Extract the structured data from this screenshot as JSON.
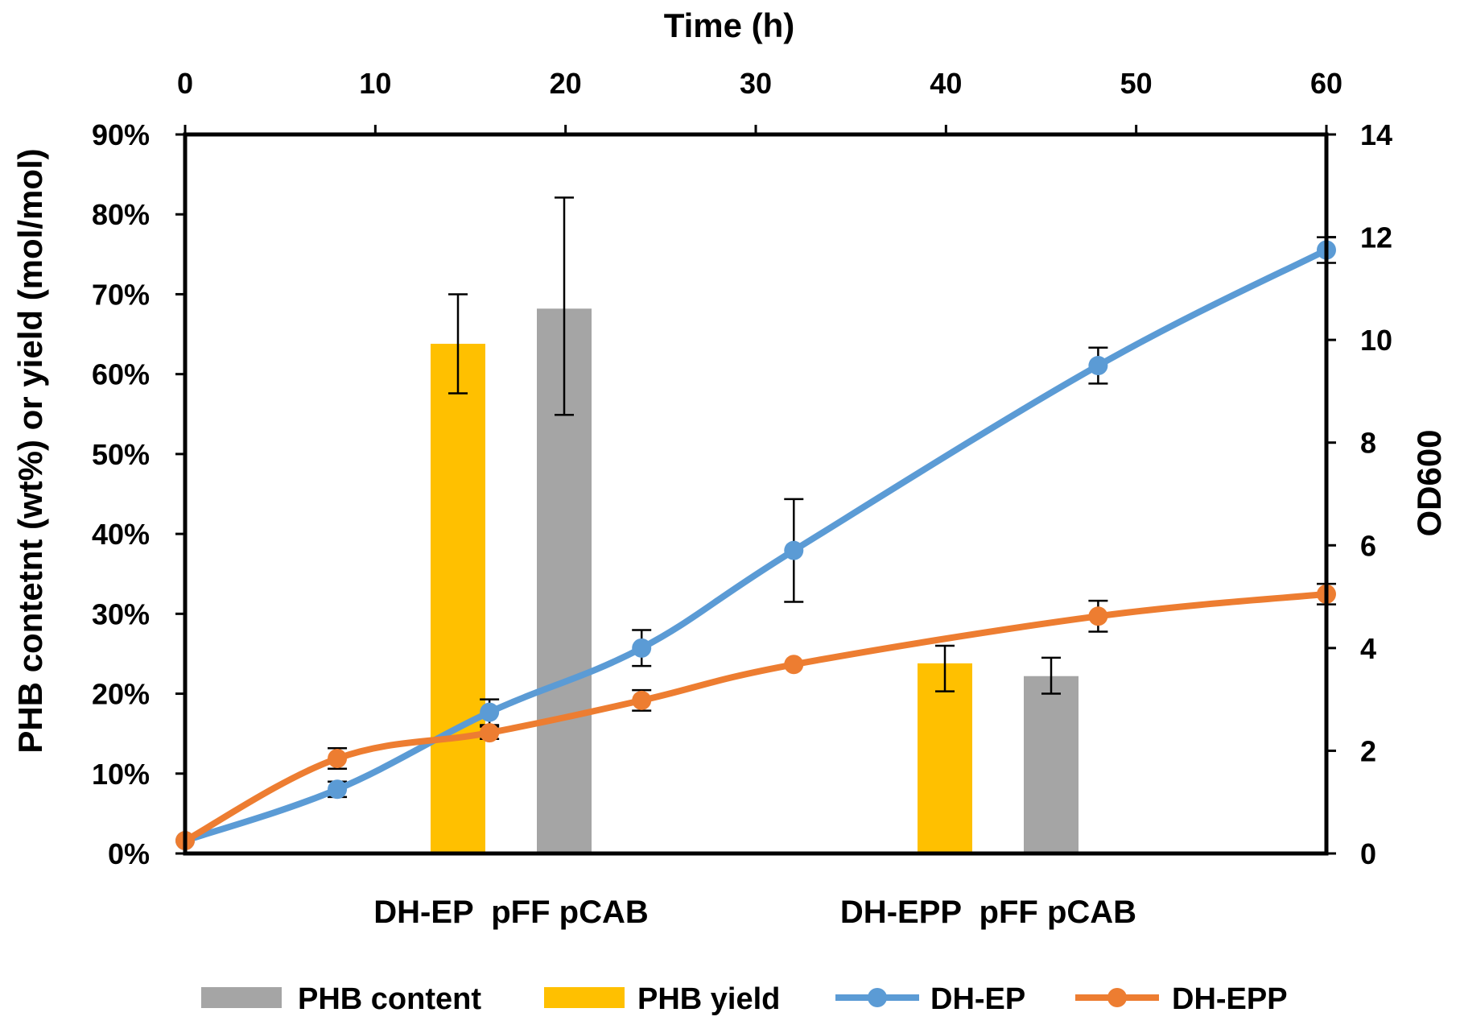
{
  "chart_data": {
    "type": "bar+line",
    "top_axis": {
      "label": "Time (h)",
      "range": [
        0,
        60
      ],
      "ticks": [
        0,
        10,
        20,
        30,
        40,
        50,
        60
      ],
      "tick_labels": [
        "0",
        "10",
        "20",
        "30",
        "40",
        "50",
        "60"
      ]
    },
    "left_axis": {
      "label": "PHB contetnt (wt%) or yield (mol/mol)",
      "range": [
        0,
        90
      ],
      "ticks": [
        0,
        10,
        20,
        30,
        40,
        50,
        60,
        70,
        80,
        90
      ],
      "tick_labels": [
        "0%",
        "10%",
        "20%",
        "30%",
        "40%",
        "50%",
        "60%",
        "70%",
        "80%",
        "90%"
      ]
    },
    "right_axis": {
      "label": "OD600",
      "range": [
        0,
        14
      ],
      "ticks": [
        0,
        2,
        4,
        6,
        8,
        10,
        12,
        14
      ],
      "tick_labels": [
        "0",
        "2",
        "4",
        "6",
        "8",
        "10",
        "12",
        "14"
      ]
    },
    "bar_groups": [
      {
        "label": "DH-EP  pFF pCAB",
        "bars": [
          {
            "series": "PHB yield",
            "value": 63.8,
            "err_low": 57.6,
            "err_high": 70.0
          },
          {
            "series": "PHB content",
            "value": 68.2,
            "err_low": 54.9,
            "err_high": 82.1
          }
        ]
      },
      {
        "label": "DH-EPP  pFF pCAB",
        "bars": [
          {
            "series": "PHB yield",
            "value": 23.8,
            "err_low": 20.3,
            "err_high": 26.0
          },
          {
            "series": "PHB content",
            "value": 22.2,
            "err_low": 20.0,
            "err_high": 24.5
          }
        ]
      }
    ],
    "line_series": [
      {
        "name": "DH-EP",
        "color": "#5b9bd5",
        "x": [
          0,
          8,
          16,
          24,
          32,
          48,
          60
        ],
        "y": [
          0.25,
          1.25,
          2.75,
          4.0,
          5.9,
          9.5,
          11.75
        ],
        "err": [
          0,
          0.15,
          0.25,
          0.35,
          1.0,
          0.35,
          0.25
        ]
      },
      {
        "name": "DH-EPP",
        "color": "#ed7d31",
        "x": [
          0,
          8,
          16,
          24,
          32,
          48,
          60
        ],
        "y": [
          0.25,
          1.85,
          2.35,
          2.98,
          3.68,
          4.62,
          5.05
        ],
        "err": [
          0,
          0.2,
          0.12,
          0.2,
          0,
          0.3,
          0.2
        ]
      }
    ],
    "legend": [
      {
        "label": "PHB content",
        "kind": "bar",
        "color": "#a5a5a5"
      },
      {
        "label": "PHB yield",
        "kind": "bar",
        "color": "#ffc000"
      },
      {
        "label": "DH-EP",
        "kind": "line",
        "color": "#5b9bd5"
      },
      {
        "label": "DH-EPP",
        "kind": "line",
        "color": "#ed7d31"
      }
    ],
    "colors": {
      "PHB content": "#a5a5a5",
      "PHB yield": "#ffc000"
    }
  }
}
